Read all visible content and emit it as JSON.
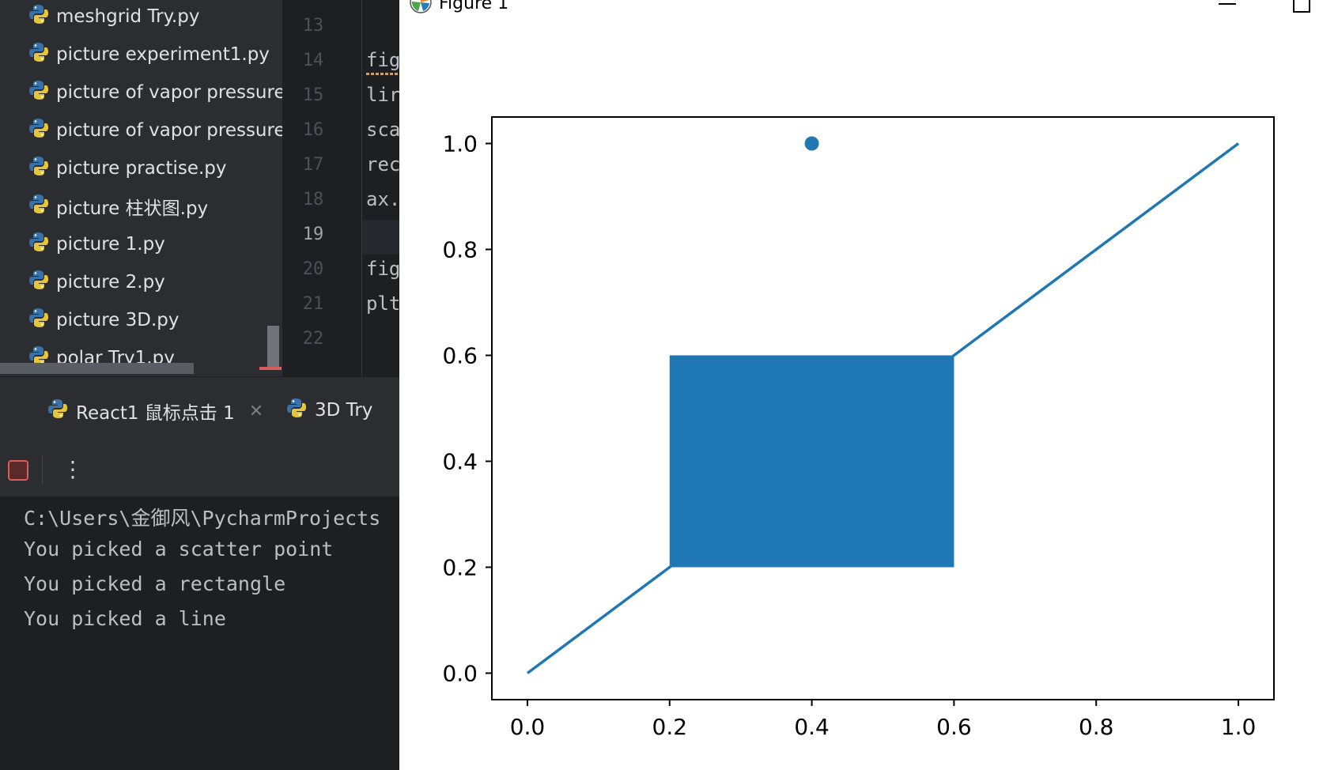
{
  "project_tree": {
    "items": [
      "meshgrid Try.py",
      "picture experiment1.py",
      "picture of vapor pressure",
      "picture of vapor pressure",
      "picture practise.py",
      "picture 柱状图.py",
      "picture 1.py",
      "picture 2.py",
      "picture 3D.py",
      "polar Try1.py"
    ]
  },
  "editor": {
    "line_numbers": [
      "13",
      "14",
      "15",
      "16",
      "17",
      "18",
      "19",
      "20",
      "21",
      "22"
    ],
    "current_line": "19",
    "code_lines": [
      "",
      "fig",
      "lir",
      "sca",
      "rec",
      "ax.",
      "",
      "fig",
      "plt",
      ""
    ]
  },
  "run_tabs": [
    {
      "label": "React1 鼠标点击 1",
      "closable": true
    },
    {
      "label": "3D Try",
      "closable": false
    }
  ],
  "run_toolbar": {
    "stop_icon": "stop-icon",
    "more_icon": "more-vertical-icon"
  },
  "console": {
    "lines": [
      "C:\\Users\\金御风\\PycharmProjects",
      "You picked a scatter point",
      "You picked a rectangle",
      "You picked a line"
    ]
  },
  "figure_window": {
    "title": "Figure 1"
  },
  "chart_data": {
    "type": "line",
    "title": "",
    "xlabel": "",
    "ylabel": "",
    "xlim": [
      -0.05,
      1.05
    ],
    "ylim": [
      -0.05,
      1.05
    ],
    "x_ticks": [
      "0.0",
      "0.2",
      "0.4",
      "0.6",
      "0.8",
      "1.0"
    ],
    "y_ticks": [
      "0.0",
      "0.2",
      "0.4",
      "0.6",
      "0.8",
      "1.0"
    ],
    "grid": false,
    "series": [
      {
        "kind": "line",
        "x": [
          0,
          1
        ],
        "y": [
          0,
          1
        ],
        "color": "#1f77b4"
      },
      {
        "kind": "scatter",
        "x": [
          0.4
        ],
        "y": [
          1.0
        ],
        "color": "#1f77b4"
      },
      {
        "kind": "rectangle",
        "x": 0.2,
        "y": 0.2,
        "width": 0.4,
        "height": 0.4,
        "color": "#1f77b4"
      }
    ]
  }
}
